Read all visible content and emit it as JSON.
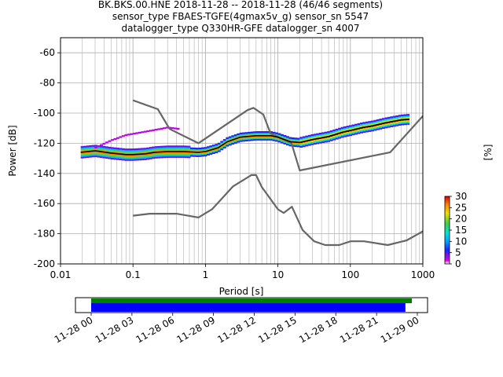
{
  "chart_data": {
    "type": "heatmap",
    "title_lines": [
      "BK.BKS.00.HNE   2018-11-28 -- 2018-11-28  (46/46 segments)",
      "sensor_type FBAES-TGFE(4gmax5v_g) sensor_sn 5547",
      "datalogger_type Q330HR-GFE datalogger_sn 4007"
    ],
    "xlabel": "Period [s]",
    "ylabel": "Power [dB]",
    "xscale": "log",
    "xlim": [
      0.01,
      1000
    ],
    "ylim": [
      -200,
      -50
    ],
    "x_tick_labels": [
      "0.01",
      "0.1",
      "1",
      "10",
      "100",
      "1000"
    ],
    "y_tick_labels": [
      "-60",
      "-80",
      "-100",
      "-120",
      "-140",
      "-160",
      "-180",
      "-200"
    ],
    "grid": true,
    "colorbar": {
      "label": "[%]",
      "min": 0,
      "max": 30,
      "tick_labels": [
        "30",
        "25",
        "20",
        "15",
        "10",
        "5",
        "0"
      ]
    },
    "colors": {
      "noise_model": "#666666",
      "mean_curve": "#000000",
      "grid": "#b0b0b0",
      "coverage_green": "#008000",
      "coverage_blue": "#0000ff"
    },
    "series": [
      {
        "role": "high-noise-model",
        "x": [
          0.1,
          0.22,
          0.32,
          0.8,
          3.8,
          4.6,
          6.3,
          7.9,
          15.4,
          20,
          354.8,
          10000
        ],
        "y": [
          -91.5,
          -97.4,
          -110.5,
          -120,
          -98,
          -96.5,
          -101,
          -113.5,
          -120,
          -138,
          -126,
          -48.5
        ]
      },
      {
        "role": "low-noise-model",
        "x": [
          0.1,
          0.17,
          0.4,
          0.8,
          1.24,
          2.4,
          4.3,
          5,
          6,
          10,
          12,
          15.6,
          21.9,
          31.6,
          45,
          70,
          101,
          154,
          328,
          600,
          10000
        ],
        "y": [
          -168,
          -166.7,
          -166.7,
          -169.2,
          -163.7,
          -148.6,
          -141.1,
          -141.1,
          -149,
          -163.8,
          -166.2,
          -162.1,
          -177.5,
          -185,
          -187.5,
          -187.5,
          -185,
          -185,
          -187.5,
          -184.4,
          -151.5
        ]
      },
      {
        "role": "mean-psd",
        "x": [
          0.019,
          0.03,
          0.05,
          0.08,
          0.1,
          0.15,
          0.2,
          0.3,
          0.5,
          0.8,
          1.0,
          1.5,
          2,
          3,
          5,
          8,
          10,
          15,
          20,
          30,
          50,
          80,
          100,
          150,
          200,
          300,
          500,
          650
        ],
        "y": [
          -126,
          -125,
          -126.5,
          -127.5,
          -127.5,
          -127,
          -126,
          -125.5,
          -125.5,
          -126,
          -125.5,
          -123,
          -119,
          -116,
          -115,
          -115,
          -116,
          -119,
          -119.5,
          -117.5,
          -115.5,
          -112.5,
          -111.5,
          -109.5,
          -108.5,
          -106.5,
          -104.5,
          -104
        ]
      },
      {
        "role": "upper-psd-spread",
        "x": [
          0.03,
          0.05,
          0.08,
          0.12,
          0.18,
          0.3,
          0.45
        ],
        "y": [
          -123,
          -118,
          -114.5,
          -113,
          -111.5,
          -109.5,
          -110.5
        ]
      }
    ]
  },
  "coverage": {
    "x_tick_labels": [
      "11-28 00",
      "11-28 03",
      "11-28 06",
      "11-28 09",
      "11-28 12",
      "11-28 15",
      "11-28 18",
      "11-28 21",
      "11-29 00"
    ],
    "green_fraction": 1.0,
    "blue_fraction": 0.98
  }
}
